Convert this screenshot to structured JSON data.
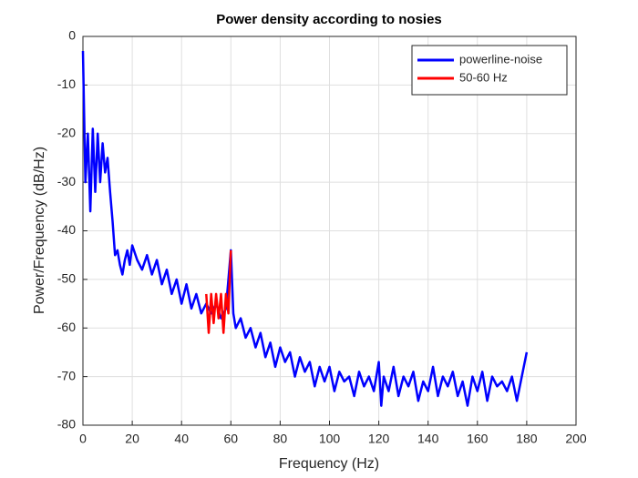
{
  "chart_data": {
    "type": "line",
    "title": "Power density according to nosies",
    "xlabel": "Frequency (Hz)",
    "ylabel": "Power/Frequency (dB/Hz)",
    "xlim": [
      0,
      200
    ],
    "ylim": [
      -80,
      0
    ],
    "xticks": [
      0,
      20,
      40,
      60,
      80,
      100,
      120,
      140,
      160,
      180,
      200
    ],
    "yticks": [
      -80,
      -70,
      -60,
      -50,
      -40,
      -30,
      -20,
      -10,
      0
    ],
    "grid": true,
    "legend": "northeast",
    "series": [
      {
        "name": "powerline-noise",
        "color": "#0000ff",
        "x": [
          0,
          1,
          2,
          3,
          4,
          5,
          6,
          7,
          8,
          9,
          10,
          11,
          12,
          13,
          14,
          15,
          16,
          17,
          18,
          19,
          20,
          22,
          24,
          26,
          28,
          30,
          32,
          34,
          36,
          38,
          40,
          42,
          44,
          46,
          48,
          50,
          52,
          54,
          56,
          58,
          60,
          61,
          62,
          64,
          66,
          68,
          70,
          72,
          74,
          76,
          78,
          80,
          82,
          84,
          86,
          88,
          90,
          92,
          94,
          96,
          98,
          100,
          102,
          104,
          106,
          108,
          110,
          112,
          114,
          116,
          118,
          120,
          121,
          122,
          124,
          126,
          128,
          130,
          132,
          134,
          136,
          138,
          140,
          142,
          144,
          146,
          148,
          150,
          152,
          154,
          156,
          158,
          160,
          162,
          164,
          166,
          168,
          170,
          172,
          174,
          176,
          178,
          180
        ],
        "values": [
          -3,
          -30,
          -20,
          -36,
          -19,
          -32,
          -20,
          -30,
          -22,
          -28,
          -25,
          -32,
          -38,
          -45,
          -44,
          -47,
          -49,
          -46,
          -44,
          -47,
          -43,
          -46,
          -48,
          -45,
          -49,
          -46,
          -51,
          -48,
          -53,
          -50,
          -55,
          -51,
          -56,
          -53,
          -57,
          -55,
          -57,
          -55,
          -58,
          -56,
          -44,
          -57,
          -60,
          -58,
          -62,
          -60,
          -64,
          -61,
          -66,
          -63,
          -68,
          -64,
          -67,
          -65,
          -70,
          -66,
          -69,
          -67,
          -72,
          -68,
          -71,
          -68,
          -73,
          -69,
          -71,
          -70,
          -74,
          -69,
          -72,
          -70,
          -73,
          -67,
          -76,
          -70,
          -73,
          -68,
          -74,
          -70,
          -72,
          -69,
          -75,
          -71,
          -73,
          -68,
          -74,
          -70,
          -72,
          -69,
          -74,
          -71,
          -76,
          -70,
          -73,
          -69,
          -75,
          -70,
          -72,
          -71,
          -73,
          -70,
          -75,
          -70,
          -65
        ]
      },
      {
        "name": "50-60 Hz",
        "color": "#ff0000",
        "x": [
          50,
          51,
          52,
          53,
          54,
          55,
          56,
          57,
          58,
          59,
          60
        ],
        "values": [
          -53,
          -61,
          -53,
          -59,
          -53,
          -58,
          -53,
          -61,
          -53,
          -57,
          -44
        ]
      }
    ]
  }
}
